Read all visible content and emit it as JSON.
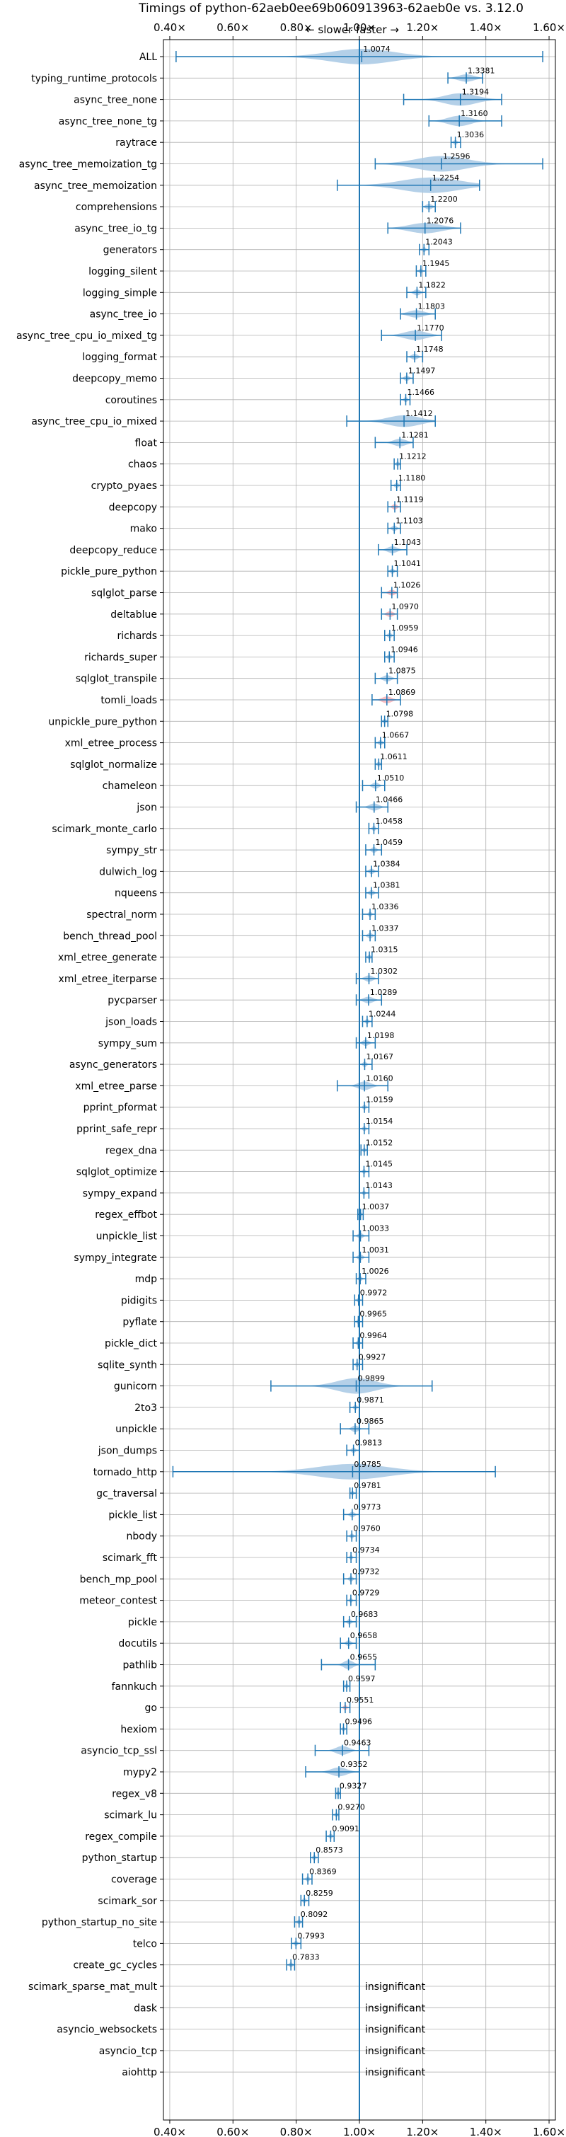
{
  "chart_data": {
    "type": "violin",
    "title": "Timings of python-62aeb0ee69b060913963-62aeb0e vs. 3.12.0",
    "subtitle": "← slower   faster →",
    "xlim": [
      0.38,
      1.62
    ],
    "xticks": [
      0.4,
      0.6,
      0.8,
      1.0,
      1.2,
      1.4,
      1.6
    ],
    "xtick_labels": [
      "0.40×",
      "0.60×",
      "0.80×",
      "1.00×",
      "1.20×",
      "1.40×",
      "1.60×"
    ],
    "reference_line": 1.0,
    "colors": {
      "violin": "#a7c8e4",
      "bar": "#1f77b4",
      "ref": "#1f77b4",
      "regression": "#f4b0b6",
      "grid": "#b0b0b0"
    },
    "insignificant_text": "insignificant",
    "rows": [
      {
        "name": "ALL",
        "value": 1.0074,
        "min": 0.42,
        "max": 1.58,
        "spread": 0.2,
        "label": "1.0074"
      },
      {
        "name": "typing_runtime_protocols",
        "value": 1.3381,
        "min": 1.28,
        "max": 1.39,
        "spread": 0.05,
        "label": "1.3381"
      },
      {
        "name": "async_tree_none",
        "value": 1.3194,
        "min": 1.14,
        "max": 1.45,
        "spread": 0.1,
        "label": "1.3194"
      },
      {
        "name": "async_tree_none_tg",
        "value": 1.316,
        "min": 1.22,
        "max": 1.45,
        "spread": 0.07,
        "label": "1.3160"
      },
      {
        "name": "raytrace",
        "value": 1.3036,
        "min": 1.29,
        "max": 1.32,
        "spread": 0.01,
        "label": "1.3036"
      },
      {
        "name": "async_tree_memoization_tg",
        "value": 1.2596,
        "min": 1.05,
        "max": 1.58,
        "spread": 0.16,
        "label": "1.2596"
      },
      {
        "name": "async_tree_memoization",
        "value": 1.2254,
        "min": 0.93,
        "max": 1.38,
        "spread": 0.18,
        "label": "1.2254"
      },
      {
        "name": "comprehensions",
        "value": 1.22,
        "min": 1.2,
        "max": 1.24,
        "spread": 0.02,
        "label": "1.2200"
      },
      {
        "name": "async_tree_io_tg",
        "value": 1.2076,
        "min": 1.09,
        "max": 1.32,
        "spread": 0.1,
        "label": "1.2076"
      },
      {
        "name": "generators",
        "value": 1.2043,
        "min": 1.19,
        "max": 1.22,
        "spread": 0.01,
        "label": "1.2043"
      },
      {
        "name": "logging_silent",
        "value": 1.1945,
        "min": 1.18,
        "max": 1.21,
        "spread": 0.01,
        "label": "1.1945"
      },
      {
        "name": "logging_simple",
        "value": 1.1822,
        "min": 1.15,
        "max": 1.21,
        "spread": 0.02,
        "label": "1.1822"
      },
      {
        "name": "async_tree_io",
        "value": 1.1803,
        "min": 1.13,
        "max": 1.24,
        "spread": 0.05,
        "label": "1.1803"
      },
      {
        "name": "async_tree_cpu_io_mixed_tg",
        "value": 1.177,
        "min": 1.07,
        "max": 1.26,
        "spread": 0.07,
        "label": "1.1770"
      },
      {
        "name": "logging_format",
        "value": 1.1748,
        "min": 1.15,
        "max": 1.2,
        "spread": 0.02,
        "label": "1.1748"
      },
      {
        "name": "deepcopy_memo",
        "value": 1.1497,
        "min": 1.13,
        "max": 1.17,
        "spread": 0.015,
        "label": "1.1497"
      },
      {
        "name": "coroutines",
        "value": 1.1466,
        "min": 1.13,
        "max": 1.16,
        "spread": 0.01,
        "label": "1.1466"
      },
      {
        "name": "async_tree_cpu_io_mixed",
        "value": 1.1412,
        "min": 0.96,
        "max": 1.24,
        "spread": 0.1,
        "label": "1.1412"
      },
      {
        "name": "float",
        "value": 1.1281,
        "min": 1.05,
        "max": 1.17,
        "spread": 0.04,
        "label": "1.1281"
      },
      {
        "name": "chaos",
        "value": 1.1212,
        "min": 1.11,
        "max": 1.13,
        "spread": 0.01,
        "label": "1.1212"
      },
      {
        "name": "crypto_pyaes",
        "value": 1.118,
        "min": 1.1,
        "max": 1.13,
        "spread": 0.012,
        "label": "1.1180"
      },
      {
        "name": "deepcopy",
        "value": 1.1119,
        "min": 1.09,
        "max": 1.13,
        "spread": 0.015,
        "label": "1.1119",
        "pink": true
      },
      {
        "name": "mako",
        "value": 1.1103,
        "min": 1.09,
        "max": 1.13,
        "spread": 0.015,
        "label": "1.1103"
      },
      {
        "name": "deepcopy_reduce",
        "value": 1.1043,
        "min": 1.06,
        "max": 1.15,
        "spread": 0.03,
        "label": "1.1043"
      },
      {
        "name": "pickle_pure_python",
        "value": 1.1041,
        "min": 1.09,
        "max": 1.12,
        "spread": 0.012,
        "label": "1.1041"
      },
      {
        "name": "sqlglot_parse",
        "value": 1.1026,
        "min": 1.07,
        "max": 1.12,
        "spread": 0.02,
        "label": "1.1026",
        "pink": true
      },
      {
        "name": "deltablue",
        "value": 1.097,
        "min": 1.07,
        "max": 1.12,
        "spread": 0.02,
        "label": "1.0970",
        "pink": true
      },
      {
        "name": "richards",
        "value": 1.0959,
        "min": 1.08,
        "max": 1.11,
        "spread": 0.012,
        "label": "1.0959"
      },
      {
        "name": "richards_super",
        "value": 1.0946,
        "min": 1.08,
        "max": 1.11,
        "spread": 0.012,
        "label": "1.0946"
      },
      {
        "name": "sqlglot_transpile",
        "value": 1.0875,
        "min": 1.05,
        "max": 1.12,
        "spread": 0.025,
        "label": "1.0875"
      },
      {
        "name": "tomli_loads",
        "value": 1.0869,
        "min": 1.04,
        "max": 1.13,
        "spread": 0.03,
        "label": "1.0869",
        "pink": true
      },
      {
        "name": "unpickle_pure_python",
        "value": 1.0798,
        "min": 1.07,
        "max": 1.09,
        "spread": 0.01,
        "label": "1.0798"
      },
      {
        "name": "xml_etree_process",
        "value": 1.0667,
        "min": 1.05,
        "max": 1.08,
        "spread": 0.012,
        "label": "1.0667"
      },
      {
        "name": "sqlglot_normalize",
        "value": 1.0611,
        "min": 1.05,
        "max": 1.07,
        "spread": 0.01,
        "label": "1.0611"
      },
      {
        "name": "chameleon",
        "value": 1.051,
        "min": 1.01,
        "max": 1.08,
        "spread": 0.02,
        "label": "1.0510"
      },
      {
        "name": "json",
        "value": 1.0466,
        "min": 0.99,
        "max": 1.09,
        "spread": 0.03,
        "label": "1.0466"
      },
      {
        "name": "scimark_monte_carlo",
        "value": 1.0458,
        "min": 1.03,
        "max": 1.06,
        "spread": 0.01,
        "label": "1.0458"
      },
      {
        "name": "sympy_str",
        "value": 1.0459,
        "min": 1.02,
        "max": 1.07,
        "spread": 0.015,
        "label": "1.0459"
      },
      {
        "name": "dulwich_log",
        "value": 1.0384,
        "min": 1.02,
        "max": 1.06,
        "spread": 0.015,
        "label": "1.0384"
      },
      {
        "name": "nqueens",
        "value": 1.0381,
        "min": 1.02,
        "max": 1.06,
        "spread": 0.015,
        "label": "1.0381"
      },
      {
        "name": "spectral_norm",
        "value": 1.0336,
        "min": 1.01,
        "max": 1.05,
        "spread": 0.01,
        "label": "1.0336"
      },
      {
        "name": "bench_thread_pool",
        "value": 1.0337,
        "min": 1.01,
        "max": 1.05,
        "spread": 0.015,
        "label": "1.0337"
      },
      {
        "name": "xml_etree_generate",
        "value": 1.0315,
        "min": 1.02,
        "max": 1.04,
        "spread": 0.01,
        "label": "1.0315"
      },
      {
        "name": "xml_etree_iterparse",
        "value": 1.0302,
        "min": 0.99,
        "max": 1.06,
        "spread": 0.025,
        "label": "1.0302"
      },
      {
        "name": "pycparser",
        "value": 1.0289,
        "min": 0.99,
        "max": 1.07,
        "spread": 0.03,
        "label": "1.0289"
      },
      {
        "name": "json_loads",
        "value": 1.0244,
        "min": 1.01,
        "max": 1.04,
        "spread": 0.01,
        "label": "1.0244"
      },
      {
        "name": "sympy_sum",
        "value": 1.0198,
        "min": 0.99,
        "max": 1.05,
        "spread": 0.02,
        "label": "1.0198"
      },
      {
        "name": "async_generators",
        "value": 1.0167,
        "min": 1.0,
        "max": 1.04,
        "spread": 0.012,
        "label": "1.0167"
      },
      {
        "name": "xml_etree_parse",
        "value": 1.016,
        "min": 0.93,
        "max": 1.09,
        "spread": 0.04,
        "label": "1.0160"
      },
      {
        "name": "pprint_pformat",
        "value": 1.0159,
        "min": 1.0,
        "max": 1.03,
        "spread": 0.01,
        "label": "1.0159"
      },
      {
        "name": "pprint_safe_repr",
        "value": 1.0154,
        "min": 1.0,
        "max": 1.03,
        "spread": 0.01,
        "label": "1.0154"
      },
      {
        "name": "regex_dna",
        "value": 1.0152,
        "min": 1.005,
        "max": 1.025,
        "spread": 0.008,
        "label": "1.0152"
      },
      {
        "name": "sqlglot_optimize",
        "value": 1.0145,
        "min": 1.0,
        "max": 1.03,
        "spread": 0.008,
        "label": "1.0145"
      },
      {
        "name": "sympy_expand",
        "value": 1.0143,
        "min": 1.0,
        "max": 1.03,
        "spread": 0.008,
        "label": "1.0143"
      },
      {
        "name": "regex_effbot",
        "value": 1.0037,
        "min": 0.995,
        "max": 1.012,
        "spread": 0.006,
        "label": "1.0037"
      },
      {
        "name": "unpickle_list",
        "value": 1.0033,
        "min": 0.98,
        "max": 1.03,
        "spread": 0.015,
        "label": "1.0033"
      },
      {
        "name": "sympy_integrate",
        "value": 1.0031,
        "min": 0.98,
        "max": 1.03,
        "spread": 0.015,
        "label": "1.0031"
      },
      {
        "name": "mdp",
        "value": 1.0026,
        "min": 0.99,
        "max": 1.02,
        "spread": 0.01,
        "label": "1.0026"
      },
      {
        "name": "pidigits",
        "value": 0.9972,
        "min": 0.985,
        "max": 1.01,
        "spread": 0.008,
        "label": "0.9972"
      },
      {
        "name": "pyflate",
        "value": 0.9965,
        "min": 0.985,
        "max": 1.01,
        "spread": 0.008,
        "label": "0.9965"
      },
      {
        "name": "pickle_dict",
        "value": 0.9964,
        "min": 0.98,
        "max": 1.01,
        "spread": 0.01,
        "label": "0.9964"
      },
      {
        "name": "sqlite_synth",
        "value": 0.9927,
        "min": 0.98,
        "max": 1.01,
        "spread": 0.01,
        "label": "0.9927"
      },
      {
        "name": "gunicorn",
        "value": 0.9899,
        "min": 0.72,
        "max": 1.23,
        "spread": 0.12,
        "label": "0.9899"
      },
      {
        "name": "2to3",
        "value": 0.9871,
        "min": 0.97,
        "max": 1.0,
        "spread": 0.01,
        "label": "0.9871"
      },
      {
        "name": "unpickle",
        "value": 0.9865,
        "min": 0.94,
        "max": 1.03,
        "spread": 0.02,
        "label": "0.9865"
      },
      {
        "name": "json_dumps",
        "value": 0.9813,
        "min": 0.96,
        "max": 1.0,
        "spread": 0.012,
        "label": "0.9813"
      },
      {
        "name": "tornado_http",
        "value": 0.9785,
        "min": 0.41,
        "max": 1.43,
        "spread": 0.22,
        "label": "0.9785"
      },
      {
        "name": "gc_traversal",
        "value": 0.9781,
        "min": 0.97,
        "max": 0.99,
        "spread": 0.008,
        "label": "0.9781"
      },
      {
        "name": "pickle_list",
        "value": 0.9773,
        "min": 0.95,
        "max": 1.0,
        "spread": 0.015,
        "label": "0.9773"
      },
      {
        "name": "nbody",
        "value": 0.976,
        "min": 0.96,
        "max": 0.99,
        "spread": 0.01,
        "label": "0.9760"
      },
      {
        "name": "scimark_fft",
        "value": 0.9734,
        "min": 0.96,
        "max": 0.99,
        "spread": 0.008,
        "label": "0.9734"
      },
      {
        "name": "bench_mp_pool",
        "value": 0.9732,
        "min": 0.95,
        "max": 0.99,
        "spread": 0.012,
        "label": "0.9732"
      },
      {
        "name": "meteor_contest",
        "value": 0.9729,
        "min": 0.96,
        "max": 0.99,
        "spread": 0.008,
        "label": "0.9729"
      },
      {
        "name": "pickle",
        "value": 0.9683,
        "min": 0.95,
        "max": 0.99,
        "spread": 0.012,
        "label": "0.9683"
      },
      {
        "name": "docutils",
        "value": 0.9658,
        "min": 0.94,
        "max": 0.99,
        "spread": 0.015,
        "label": "0.9658"
      },
      {
        "name": "pathlib",
        "value": 0.9655,
        "min": 0.88,
        "max": 1.05,
        "spread": 0.03,
        "label": "0.9655"
      },
      {
        "name": "fannkuch",
        "value": 0.9597,
        "min": 0.95,
        "max": 0.97,
        "spread": 0.008,
        "label": "0.9597"
      },
      {
        "name": "go",
        "value": 0.9551,
        "min": 0.94,
        "max": 0.97,
        "spread": 0.01,
        "label": "0.9551",
        "pink": true
      },
      {
        "name": "hexiom",
        "value": 0.9496,
        "min": 0.94,
        "max": 0.96,
        "spread": 0.008,
        "label": "0.9496"
      },
      {
        "name": "asyncio_tcp_ssl",
        "value": 0.9463,
        "min": 0.86,
        "max": 1.03,
        "spread": 0.04,
        "label": "0.9463"
      },
      {
        "name": "mypy2",
        "value": 0.9352,
        "min": 0.83,
        "max": 1.0,
        "spread": 0.05,
        "label": "0.9352"
      },
      {
        "name": "regex_v8",
        "value": 0.9327,
        "min": 0.925,
        "max": 0.94,
        "spread": 0.006,
        "label": "0.9327"
      },
      {
        "name": "scimark_lu",
        "value": 0.927,
        "min": 0.915,
        "max": 0.935,
        "spread": 0.008,
        "label": "0.9270"
      },
      {
        "name": "regex_compile",
        "value": 0.9091,
        "min": 0.895,
        "max": 0.92,
        "spread": 0.01,
        "label": "0.9091"
      },
      {
        "name": "python_startup",
        "value": 0.8573,
        "min": 0.845,
        "max": 0.87,
        "spread": 0.01,
        "label": "0.8573"
      },
      {
        "name": "coverage",
        "value": 0.8369,
        "min": 0.82,
        "max": 0.85,
        "spread": 0.01,
        "label": "0.8369"
      },
      {
        "name": "scimark_sor",
        "value": 0.8259,
        "min": 0.815,
        "max": 0.84,
        "spread": 0.01,
        "label": "0.8259"
      },
      {
        "name": "python_startup_no_site",
        "value": 0.8092,
        "min": 0.795,
        "max": 0.82,
        "spread": 0.01,
        "label": "0.8092"
      },
      {
        "name": "telco",
        "value": 0.7993,
        "min": 0.785,
        "max": 0.815,
        "spread": 0.01,
        "label": "0.7993"
      },
      {
        "name": "create_gc_cycles",
        "value": 0.7833,
        "min": 0.77,
        "max": 0.795,
        "spread": 0.01,
        "label": "0.7833"
      },
      {
        "name": "scimark_sparse_mat_mult",
        "insignificant": true
      },
      {
        "name": "dask",
        "insignificant": true
      },
      {
        "name": "asyncio_websockets",
        "insignificant": true
      },
      {
        "name": "asyncio_tcp",
        "insignificant": true
      },
      {
        "name": "aiohttp",
        "insignificant": true
      }
    ]
  }
}
